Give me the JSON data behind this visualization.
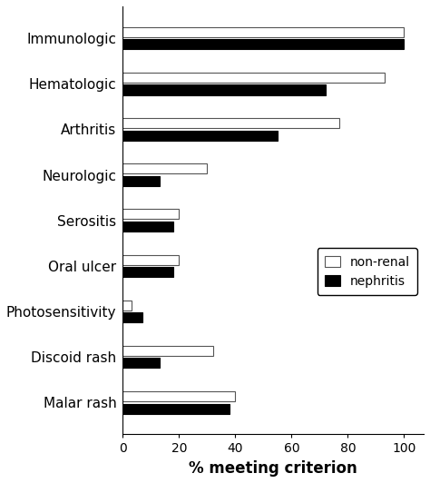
{
  "categories": [
    "Immunologic",
    "Hematologic",
    "Arthritis",
    "Neurologic",
    "Serositis",
    "Oral ulcer",
    "Photosensitivity",
    "Discoid rash",
    "Malar rash"
  ],
  "non_renal": [
    100,
    93,
    77,
    30,
    20,
    20,
    3,
    32,
    40
  ],
  "nephritis": [
    100,
    72,
    55,
    13,
    18,
    18,
    7,
    13,
    38
  ],
  "bar_height": 0.22,
  "bar_gap": 0.05,
  "non_renal_color": "#ffffff",
  "nephritis_color": "#000000",
  "non_renal_edgecolor": "#555555",
  "nephritis_edgecolor": "#000000",
  "xlabel": "% meeting criterion",
  "xlim": [
    0,
    107
  ],
  "xticks": [
    0,
    20,
    40,
    60,
    80,
    100
  ],
  "legend_labels": [
    "non-renal",
    "nephritis"
  ],
  "legend_colors": [
    "#ffffff",
    "#000000"
  ],
  "figsize": [
    4.74,
    5.32
  ],
  "dpi": 100,
  "category_fontsize": 11,
  "xlabel_fontsize": 12,
  "tick_fontsize": 10
}
